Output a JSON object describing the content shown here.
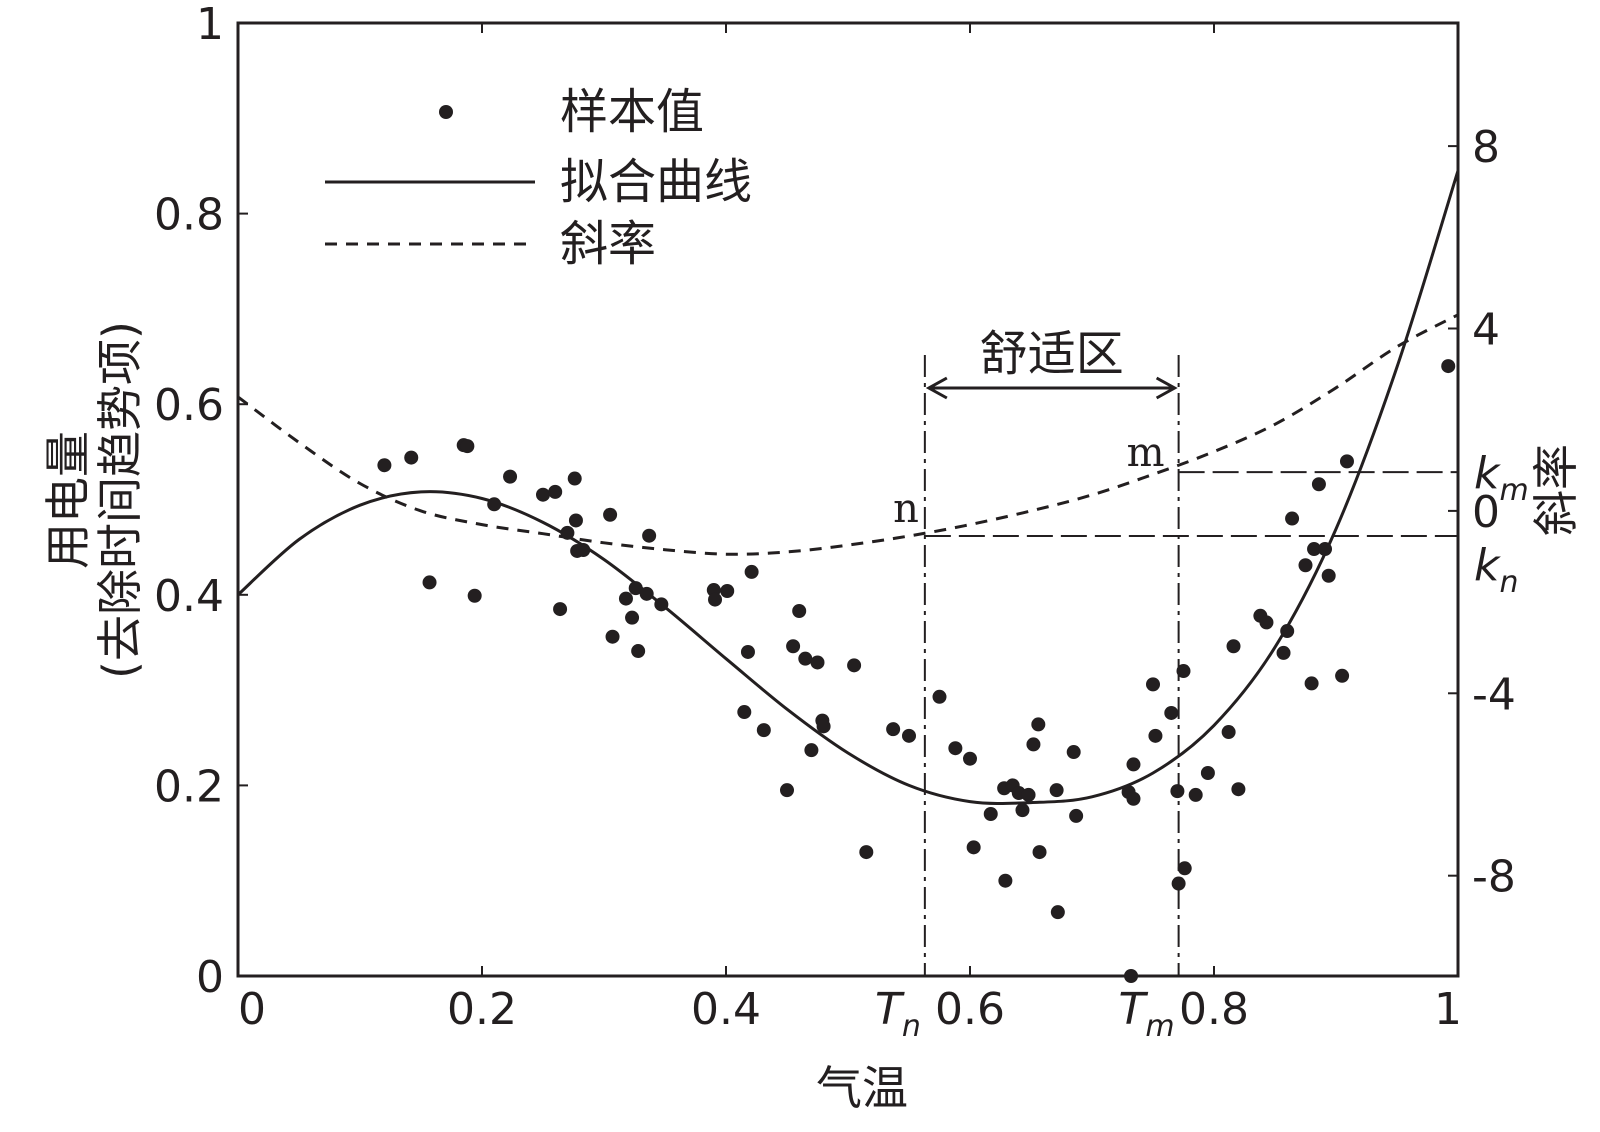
{
  "chart_data": {
    "type": "scatter",
    "xlabel": "气温",
    "ylabel_lines": [
      "用电量",
      "(去除时间趋势项)"
    ],
    "y2label": "斜率",
    "xlim": [
      0,
      1
    ],
    "ylim": [
      0,
      1
    ],
    "y2lim": [
      -10.2,
      10.7
    ],
    "x_ticks": [
      "0",
      "0.2",
      "0.4",
      "0.6",
      "0.8",
      "1"
    ],
    "x_tick_values": [
      0,
      0.2,
      0.4,
      0.6,
      0.8,
      1
    ],
    "y_ticks": [
      "0",
      "0.2",
      "0.4",
      "0.6",
      "0.8",
      "1"
    ],
    "y_tick_values": [
      0,
      0.2,
      0.4,
      0.6,
      0.8,
      1
    ],
    "y2_ticks": [
      "-8",
      "-4",
      "0",
      "4",
      "8"
    ],
    "y2_tick_values": [
      -8,
      -4,
      0,
      4,
      8
    ],
    "legend": [
      {
        "label": "样本值",
        "style": "marker"
      },
      {
        "label": "拟合曲线",
        "style": "solid"
      },
      {
        "label": "斜率",
        "style": "dashed"
      }
    ],
    "series": [
      {
        "name": "样本值",
        "kind": "scatter",
        "points": [
          [
            0.12,
            0.536
          ],
          [
            0.142,
            0.544
          ],
          [
            0.157,
            0.413
          ],
          [
            0.185,
            0.557
          ],
          [
            0.188,
            0.556
          ],
          [
            0.194,
            0.399
          ],
          [
            0.21,
            0.495
          ],
          [
            0.223,
            0.524
          ],
          [
            0.25,
            0.505
          ],
          [
            0.26,
            0.508
          ],
          [
            0.264,
            0.385
          ],
          [
            0.27,
            0.465
          ],
          [
            0.276,
            0.522
          ],
          [
            0.277,
            0.478
          ],
          [
            0.278,
            0.446
          ],
          [
            0.283,
            0.447
          ],
          [
            0.305,
            0.484
          ],
          [
            0.307,
            0.356
          ],
          [
            0.318,
            0.396
          ],
          [
            0.323,
            0.376
          ],
          [
            0.326,
            0.407
          ],
          [
            0.328,
            0.341
          ],
          [
            0.335,
            0.401
          ],
          [
            0.337,
            0.462
          ],
          [
            0.347,
            0.39
          ],
          [
            0.39,
            0.405
          ],
          [
            0.391,
            0.395
          ],
          [
            0.401,
            0.404
          ],
          [
            0.415,
            0.277
          ],
          [
            0.418,
            0.34
          ],
          [
            0.421,
            0.424
          ],
          [
            0.431,
            0.258
          ],
          [
            0.45,
            0.195
          ],
          [
            0.455,
            0.346
          ],
          [
            0.46,
            0.383
          ],
          [
            0.465,
            0.333
          ],
          [
            0.47,
            0.237
          ],
          [
            0.475,
            0.329
          ],
          [
            0.479,
            0.268
          ],
          [
            0.48,
            0.262
          ],
          [
            0.505,
            0.326
          ],
          [
            0.515,
            0.13
          ],
          [
            0.537,
            0.259
          ],
          [
            0.55,
            0.252
          ],
          [
            0.575,
            0.293
          ],
          [
            0.588,
            0.239
          ],
          [
            0.6,
            0.228
          ],
          [
            0.603,
            0.135
          ],
          [
            0.617,
            0.17
          ],
          [
            0.628,
            0.197
          ],
          [
            0.629,
            0.1
          ],
          [
            0.635,
            0.2
          ],
          [
            0.64,
            0.192
          ],
          [
            0.643,
            0.174
          ],
          [
            0.648,
            0.19
          ],
          [
            0.652,
            0.243
          ],
          [
            0.656,
            0.264
          ],
          [
            0.657,
            0.13
          ],
          [
            0.671,
            0.195
          ],
          [
            0.672,
            0.067
          ],
          [
            0.685,
            0.235
          ],
          [
            0.687,
            0.168
          ],
          [
            0.73,
            0.193
          ],
          [
            0.732,
            0.0
          ],
          [
            0.734,
            0.222
          ],
          [
            0.734,
            0.186
          ],
          [
            0.75,
            0.306
          ],
          [
            0.752,
            0.252
          ],
          [
            0.765,
            0.276
          ],
          [
            0.77,
            0.194
          ],
          [
            0.771,
            0.097
          ],
          [
            0.775,
            0.32
          ],
          [
            0.776,
            0.113
          ],
          [
            0.785,
            0.19
          ],
          [
            0.795,
            0.213
          ],
          [
            0.812,
            0.256
          ],
          [
            0.816,
            0.346
          ],
          [
            0.82,
            0.196
          ],
          [
            0.838,
            0.378
          ],
          [
            0.843,
            0.371
          ],
          [
            0.857,
            0.339
          ],
          [
            0.86,
            0.362
          ],
          [
            0.864,
            0.48
          ],
          [
            0.875,
            0.431
          ],
          [
            0.88,
            0.307
          ],
          [
            0.882,
            0.448
          ],
          [
            0.886,
            0.516
          ],
          [
            0.891,
            0.448
          ],
          [
            0.894,
            0.42
          ],
          [
            0.905,
            0.315
          ],
          [
            0.909,
            0.54
          ],
          [
            0.992,
            0.64
          ]
        ]
      },
      {
        "name": "拟合曲线",
        "kind": "line",
        "points": [
          [
            0.0,
            0.4
          ],
          [
            0.05,
            0.458
          ],
          [
            0.1,
            0.494
          ],
          [
            0.15,
            0.508
          ],
          [
            0.2,
            0.501
          ],
          [
            0.25,
            0.476
          ],
          [
            0.3,
            0.437
          ],
          [
            0.35,
            0.387
          ],
          [
            0.4,
            0.333
          ],
          [
            0.45,
            0.28
          ],
          [
            0.5,
            0.234
          ],
          [
            0.55,
            0.2
          ],
          [
            0.6,
            0.183
          ],
          [
            0.65,
            0.182
          ],
          [
            0.7,
            0.188
          ],
          [
            0.75,
            0.213
          ],
          [
            0.8,
            0.263
          ],
          [
            0.85,
            0.345
          ],
          [
            0.9,
            0.469
          ],
          [
            0.95,
            0.639
          ],
          [
            1.0,
            0.845
          ]
        ]
      },
      {
        "name": "斜率",
        "kind": "line",
        "axis": "right",
        "points": [
          [
            0.0,
            2.5
          ],
          [
            0.05,
            1.5
          ],
          [
            0.1,
            0.6
          ],
          [
            0.15,
            0.0
          ],
          [
            0.2,
            -0.3
          ],
          [
            0.25,
            -0.5
          ],
          [
            0.3,
            -0.7
          ],
          [
            0.35,
            -0.85
          ],
          [
            0.4,
            -0.95
          ],
          [
            0.45,
            -0.9
          ],
          [
            0.5,
            -0.75
          ],
          [
            0.55,
            -0.55
          ],
          [
            0.6,
            -0.3
          ],
          [
            0.65,
            0.0
          ],
          [
            0.7,
            0.35
          ],
          [
            0.75,
            0.8
          ],
          [
            0.8,
            1.3
          ],
          [
            0.85,
            1.9
          ],
          [
            0.9,
            2.7
          ],
          [
            0.95,
            3.6
          ],
          [
            1.0,
            4.3
          ]
        ]
      }
    ],
    "annotations": {
      "comfort_zone": "舒适区",
      "n_label": "n",
      "m_label": "m",
      "Tn": {
        "main": "T",
        "sub": "n",
        "x": 0.563
      },
      "Tm": {
        "main": "T",
        "sub": "m",
        "x": 0.771
      },
      "kn": {
        "main": "k",
        "sub": "n",
        "y2": -0.55
      },
      "km": {
        "main": "k",
        "sub": "m",
        "y2": 0.85
      }
    }
  }
}
